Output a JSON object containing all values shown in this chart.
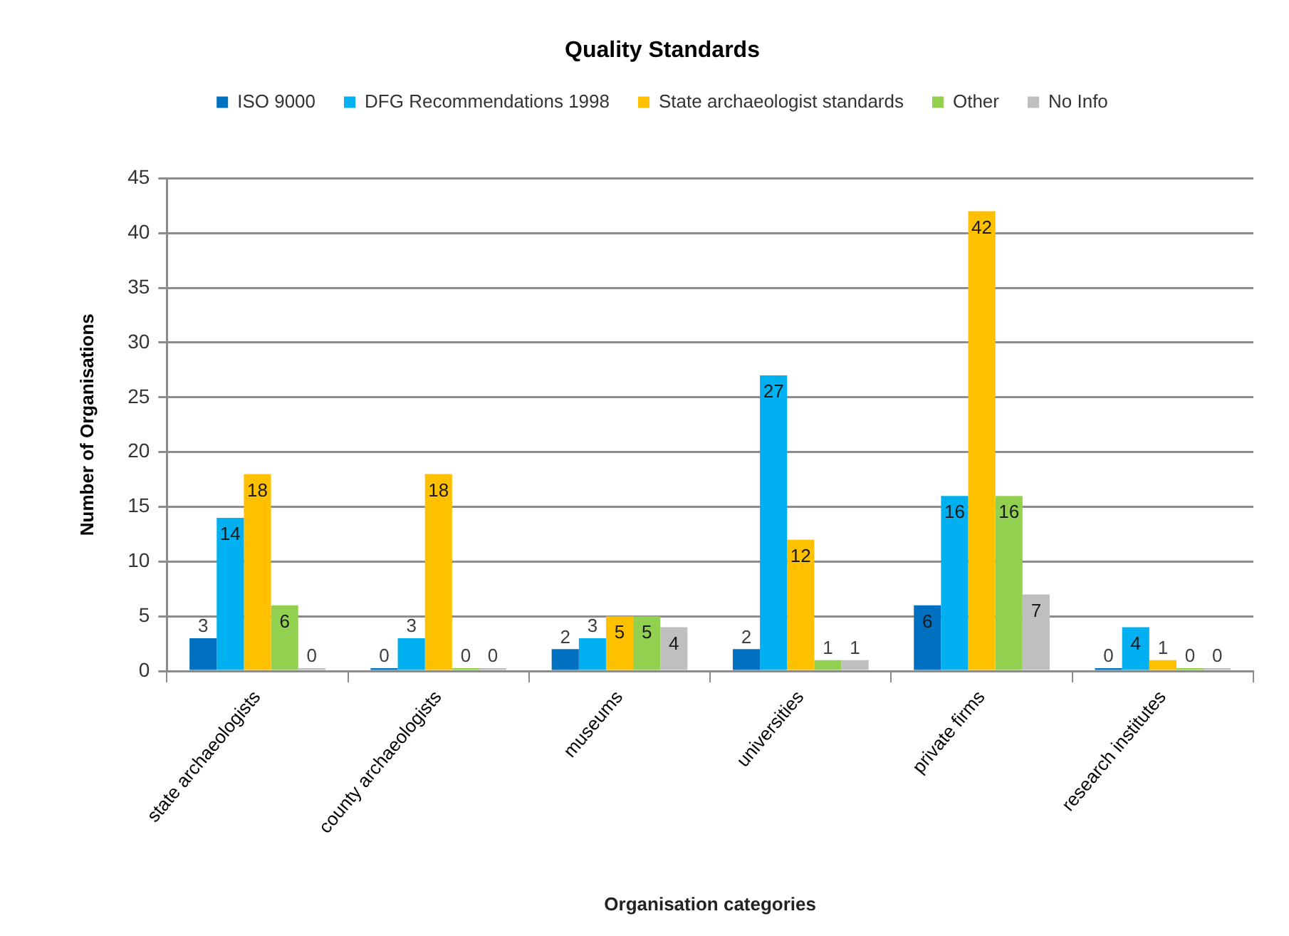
{
  "chart_data": {
    "type": "bar",
    "title": "Quality Standards",
    "xlabel": "Organisation categories",
    "ylabel": "Number of Organisations",
    "categories": [
      "state archaeologists",
      "county archaeologists",
      "museums",
      "universities",
      "private firms",
      "research institutes"
    ],
    "series": [
      {
        "name": "ISO 9000",
        "color": "#0070c0",
        "values": [
          3,
          0,
          2,
          2,
          6,
          0
        ]
      },
      {
        "name": "DFG Recommendations 1998",
        "color": "#00b0f0",
        "values": [
          14,
          3,
          3,
          27,
          16,
          4
        ]
      },
      {
        "name": "State archaeologist standards",
        "color": "#ffc000",
        "values": [
          18,
          18,
          5,
          12,
          42,
          1
        ]
      },
      {
        "name": "Other",
        "color": "#92d050",
        "values": [
          6,
          0,
          5,
          1,
          16,
          0
        ]
      },
      {
        "name": "No Info",
        "color": "#bfbfbf",
        "values": [
          0,
          0,
          4,
          1,
          7,
          0
        ]
      }
    ],
    "ylim": [
      0,
      45
    ],
    "yticks": [
      0,
      5,
      10,
      15,
      20,
      25,
      30,
      35,
      40,
      45
    ],
    "grid": "y",
    "legend": "top",
    "data_labels": true
  }
}
